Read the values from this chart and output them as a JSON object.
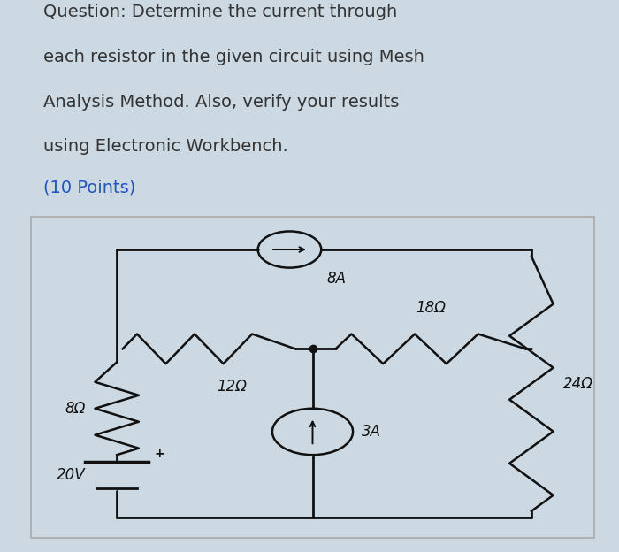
{
  "bg_color": "#ccd9e3",
  "circuit_bg": "#f5f5f5",
  "question_color": "#333333",
  "points_color": "#2255bb",
  "circuit_line_color": "#111111",
  "question_text_lines": [
    "Question: Determine the current through",
    "each resistor in the given circuit using Mesh",
    "Analysis Method. Also, verify your results",
    "using Electronic Workbench.",
    "(10 Points)"
  ],
  "font_size_question": 14,
  "font_size_label": 12
}
